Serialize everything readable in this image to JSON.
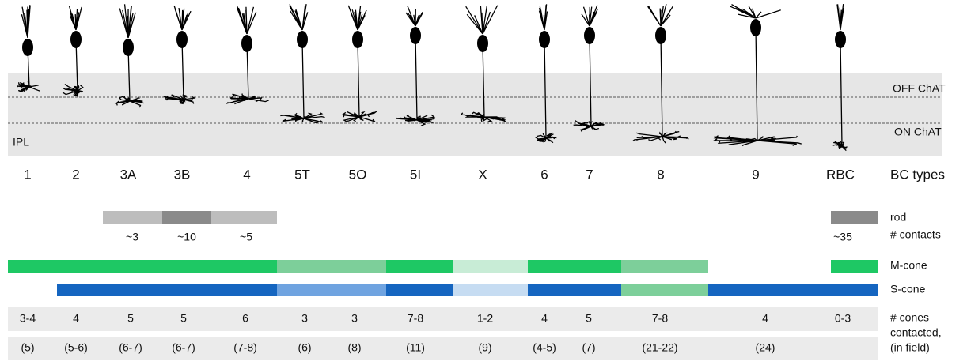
{
  "retina": {
    "off_chat": "OFF ChAT",
    "on_chat": "ON ChAT",
    "ipl": "IPL"
  },
  "bc_types": {
    "label": "BC types",
    "items": [
      "1",
      "2",
      "3A",
      "3B",
      "4",
      "5T",
      "5O",
      "5I",
      "X",
      "6",
      "7",
      "8",
      "9",
      "RBC"
    ]
  },
  "rod": {
    "label": "rod",
    "contacts_label": "# contacts",
    "values": [
      "~3",
      "~10",
      "~5",
      "~35"
    ]
  },
  "m_cone": "M-cone",
  "s_cone": "S-cone",
  "cones": {
    "label": [
      "# cones",
      "contacted,",
      "(in field)"
    ],
    "contacted": [
      "3-4",
      "4",
      "5",
      "5",
      "6",
      "3",
      "3",
      "7-8",
      "1-2",
      "4",
      "5",
      "7-8",
      "4",
      "0-3"
    ],
    "in_field": [
      "(5)",
      "(5-6)",
      "(6-7)",
      "(6-7)",
      "(7-8)",
      "(6)",
      "(8)",
      "(11)",
      "(9)",
      "(4-5)",
      "(7)",
      "(21-22)",
      "(24)"
    ]
  }
}
